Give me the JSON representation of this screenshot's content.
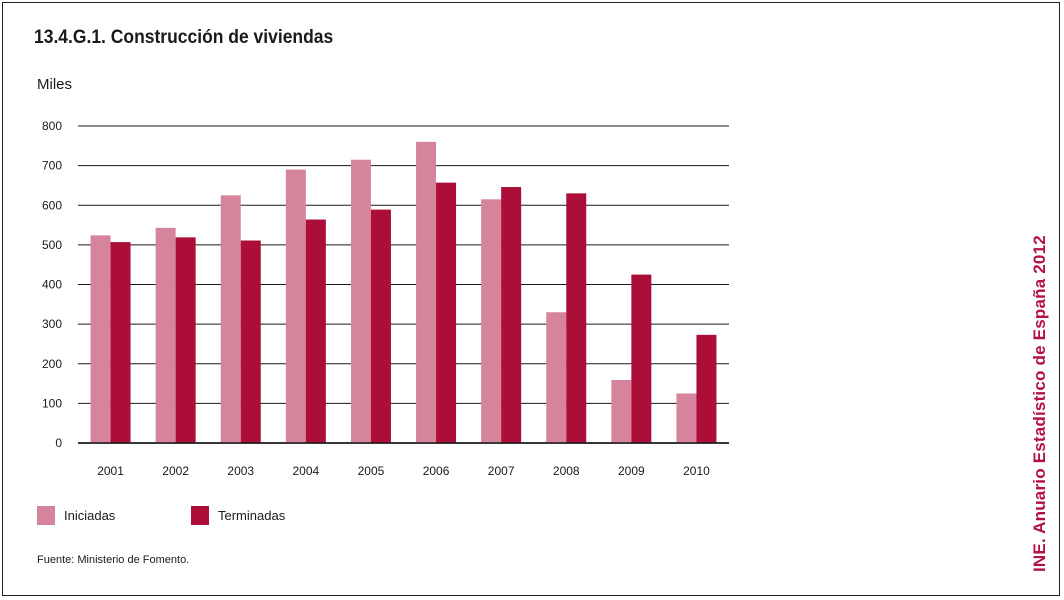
{
  "title": "13.4.G.1. Construcción de viviendas",
  "unit": "Miles",
  "source": "Fuente: Ministerio de Fomento.",
  "side_label": "INE. Anuario Estadístico de España 2012",
  "colors": {
    "iniciadas": "#d6849b",
    "terminadas": "#ac0e3a",
    "side_label": "#b3123f"
  },
  "legend": [
    "Iniciadas",
    "Terminadas"
  ],
  "chart_data": {
    "type": "bar",
    "title": "13.4.G.1. Construcción de viviendas",
    "ylabel": "Miles",
    "xlabel": "",
    "categories": [
      "2001",
      "2002",
      "2003",
      "2004",
      "2005",
      "2006",
      "2007",
      "2008",
      "2009",
      "2010"
    ],
    "series": [
      {
        "name": "Iniciadas",
        "color": "#d6849b",
        "values": [
          524,
          543,
          625,
          690,
          715,
          760,
          615,
          330,
          159,
          125
        ]
      },
      {
        "name": "Terminadas",
        "color": "#ac0e3a",
        "values": [
          507,
          519,
          511,
          564,
          589,
          657,
          646,
          630,
          425,
          273
        ]
      }
    ],
    "ylim": [
      0,
      800
    ],
    "yticks": [
      0,
      100,
      200,
      300,
      400,
      500,
      600,
      700,
      800
    ],
    "grid": true,
    "legend_position": "bottom-left"
  }
}
